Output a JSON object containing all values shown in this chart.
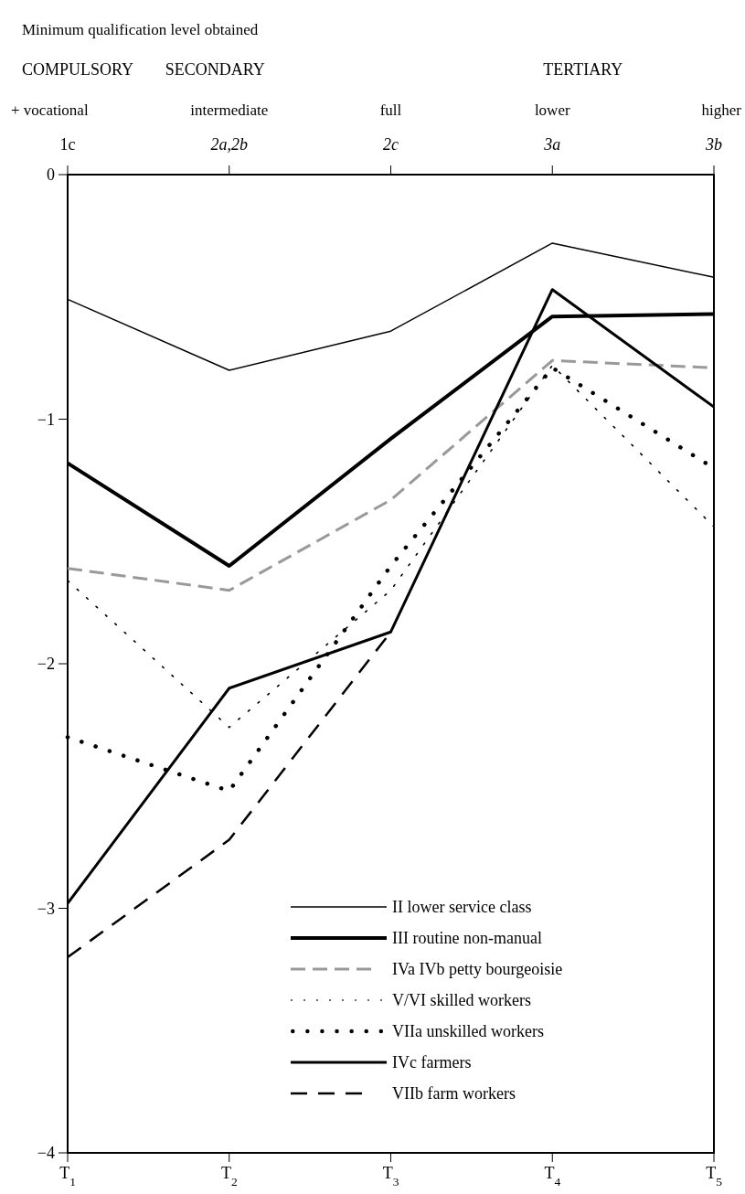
{
  "chart_data": {
    "type": "line",
    "title": "Minimum qualification level obtained",
    "categories": [
      "T$_{1}$",
      "T$_{2}$",
      "T$_{3}$",
      "T$_{4}$",
      "T$_{5}$"
    ],
    "ylim": [
      -4,
      0
    ],
    "yticks": [
      0,
      -1,
      -2,
      -3,
      -4
    ],
    "grid": false,
    "legend": "bottom right",
    "marker": "none",
    "annotations": [
      "COMPULSORY",
      "SECONDARY",
      "TERTIARY",
      "+ vocational",
      "intermediate",
      "full",
      "lower",
      "higher",
      "1c",
      "2a,2b",
      "2c",
      "3a",
      "3b"
    ],
    "series": [
      {
        "name": "II lower service class",
        "color": "#000000",
        "line_style": "solid",
        "values": [
          -0.51,
          -0.8,
          -0.64,
          -0.28,
          -0.42
        ]
      },
      {
        "name": "III routine non-manual",
        "color": "#000000",
        "line_style": "solid",
        "values": [
          -1.18,
          -1.6,
          -1.08,
          -0.58,
          -0.57
        ]
      },
      {
        "name": "IVa IVb petty bourgeoisie",
        "color": "#999999",
        "line_style": "dashed",
        "values": [
          -1.61,
          -1.7,
          -1.33,
          -0.76,
          -0.79
        ]
      },
      {
        "name": "V/VI skilled workers",
        "color": "#000000",
        "line_style": "dotted",
        "values": [
          -1.66,
          -2.26,
          -1.7,
          -0.78,
          -1.44
        ]
      },
      {
        "name": "VIIa unskilled workers",
        "color": "#000000",
        "line_style": "dotted",
        "values": [
          -2.3,
          -2.52,
          -1.6,
          -0.79,
          -1.2
        ]
      },
      {
        "name": "IVc farmers",
        "color": "#000000",
        "line_style": "solid",
        "values": [
          -2.98,
          -2.1,
          -1.87,
          -0.47,
          -0.95
        ]
      },
      {
        "name": "VIIb farm workers",
        "color": "#000000",
        "line_style": "dashed",
        "values": [
          -3.2,
          -2.72,
          -1.87,
          null,
          null
        ]
      }
    ]
  }
}
